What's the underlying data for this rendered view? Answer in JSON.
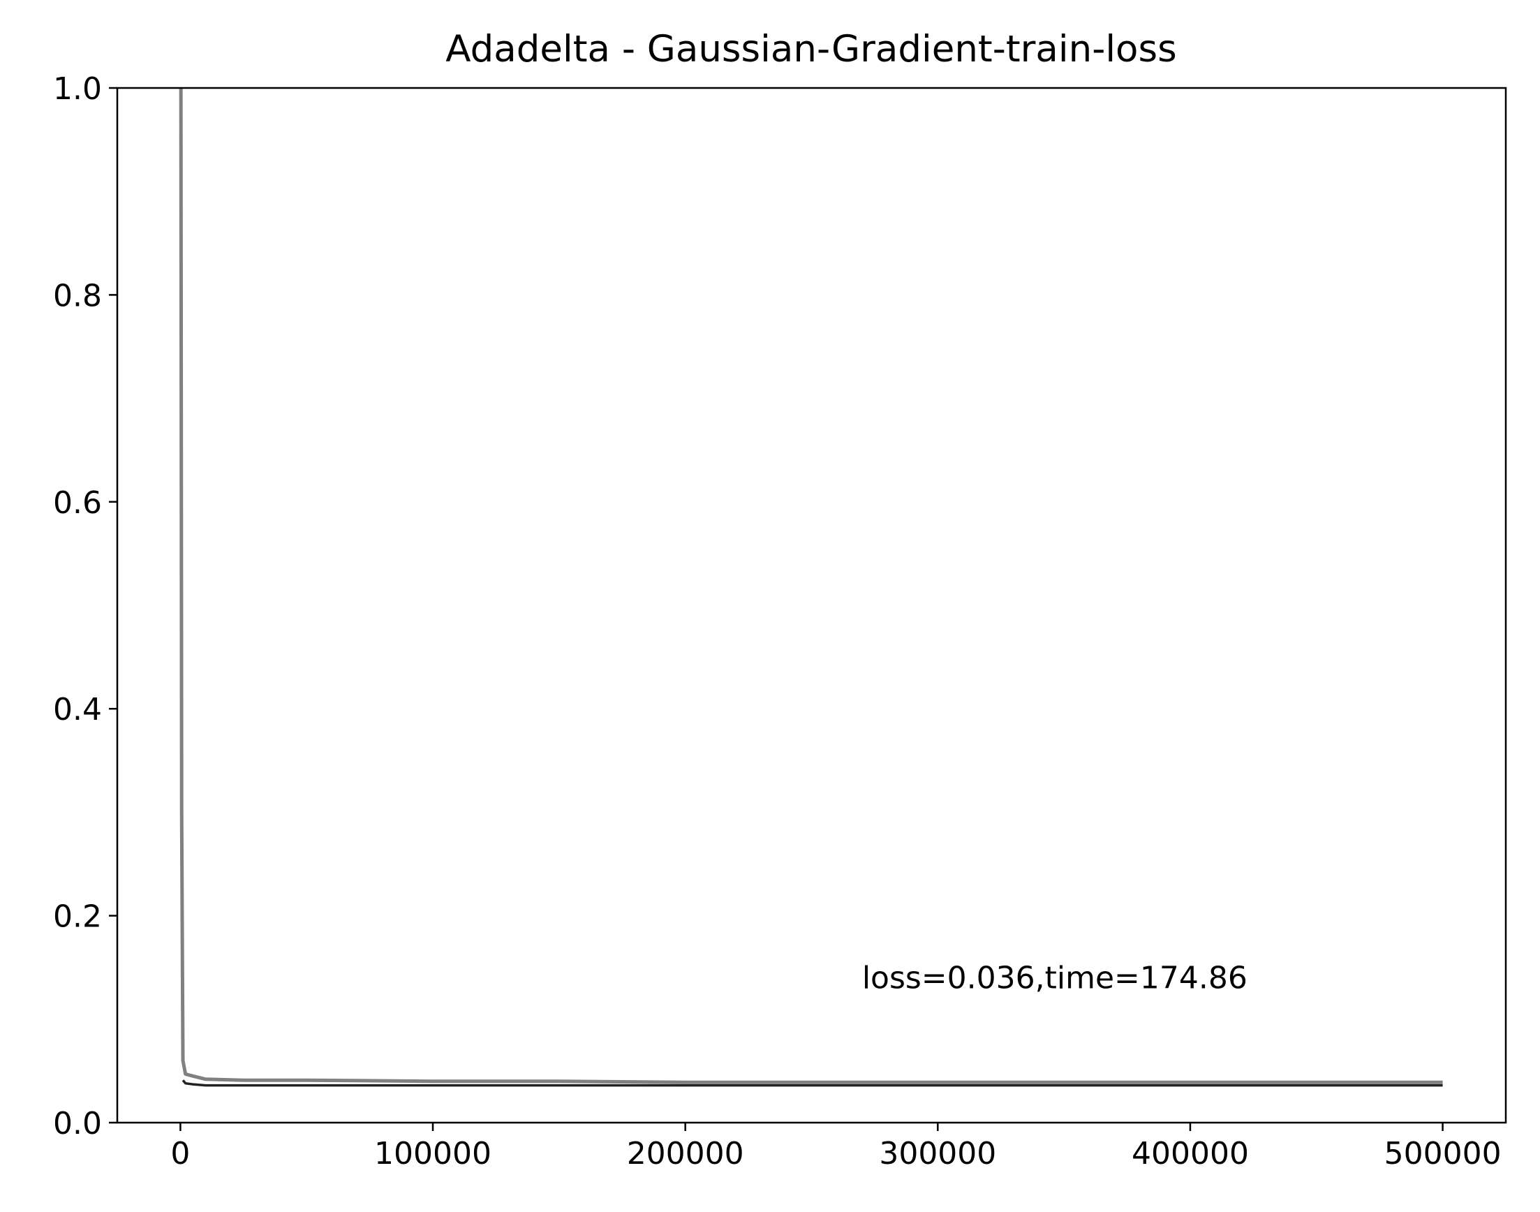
{
  "chart_data": {
    "type": "line",
    "title": "Adadelta - Gaussian-Gradient-train-loss",
    "xlabel": "",
    "ylabel": "",
    "xlim": [
      -25000,
      525000
    ],
    "ylim": [
      0.0,
      1.0
    ],
    "x_ticks": [
      0,
      100000,
      200000,
      300000,
      400000,
      500000
    ],
    "x_tick_labels": [
      "0",
      "100000",
      "200000",
      "300000",
      "400000",
      "500000"
    ],
    "y_ticks": [
      0.0,
      0.2,
      0.4,
      0.6,
      0.8,
      1.0
    ],
    "y_tick_labels": [
      "0.0",
      "0.2",
      "0.4",
      "0.6",
      "0.8",
      "1.0"
    ],
    "grid": false,
    "annotation": {
      "text": "loss=0.036,time=174.86",
      "x": 270000,
      "y": 0.13
    },
    "series": [
      {
        "color": "#808080",
        "x": [
          0,
          500,
          1000,
          2000,
          5000,
          10000,
          25000,
          50000,
          100000,
          150000,
          200000,
          250000,
          300000,
          350000,
          400000,
          450000,
          500000
        ],
        "y": [
          1.5,
          0.3,
          0.06,
          0.047,
          0.045,
          0.042,
          0.041,
          0.041,
          0.04,
          0.04,
          0.039,
          0.039,
          0.039,
          0.039,
          0.039,
          0.039,
          0.039
        ]
      },
      {
        "color": "#222222",
        "x": [
          1000,
          2000,
          5000,
          10000,
          25000,
          50000,
          100000,
          150000,
          200000,
          250000,
          300000,
          350000,
          400000,
          450000,
          500000
        ],
        "y": [
          0.041,
          0.038,
          0.037,
          0.036,
          0.036,
          0.036,
          0.036,
          0.036,
          0.036,
          0.036,
          0.036,
          0.036,
          0.036,
          0.036,
          0.036
        ]
      }
    ]
  }
}
